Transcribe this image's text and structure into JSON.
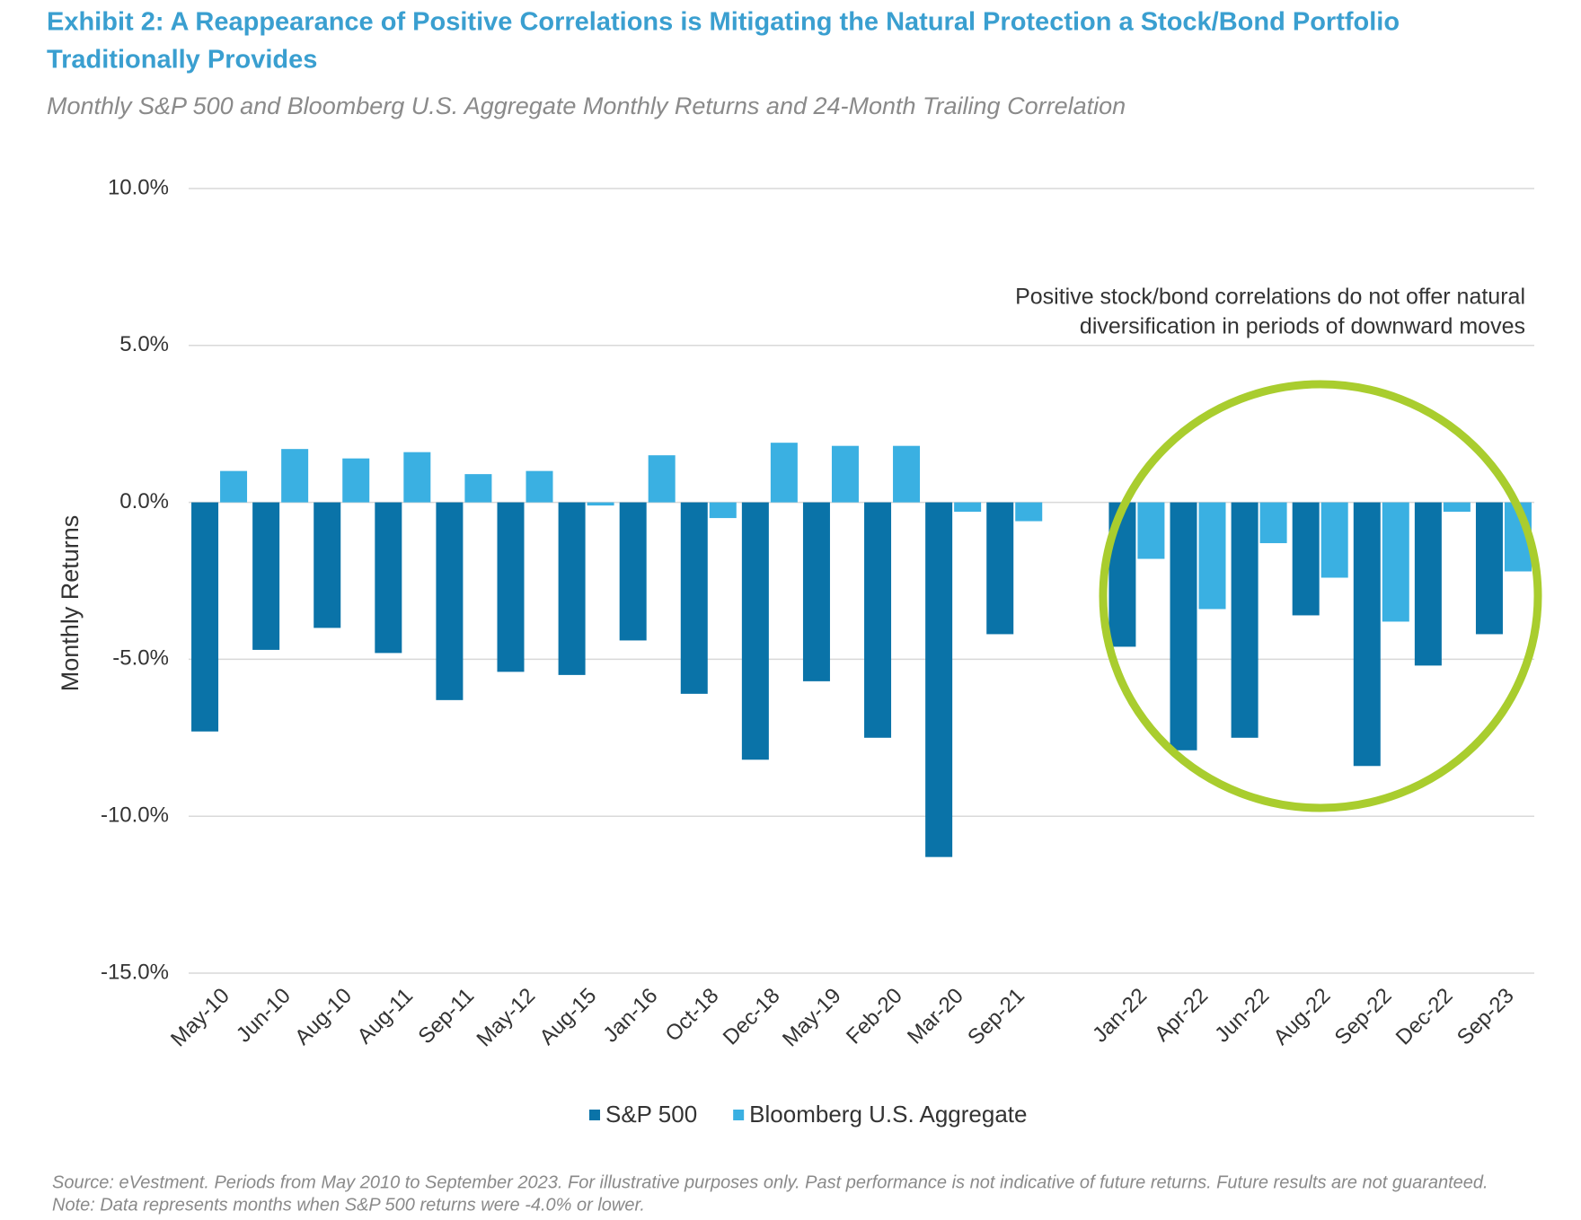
{
  "chart_data": {
    "type": "bar",
    "title": "Exhibit 2: A Reappearance of Positive Correlations is Mitigating the Natural Protection a Stock/Bond Portfolio",
    "title_line2": "Traditionally Provides",
    "subtitle": "Monthly S&P 500 and Bloomberg U.S. Aggregate Monthly Returns and 24-Month Trailing Correlation",
    "y_label": "Monthly Returns",
    "categories": [
      "May-10",
      "Jun-10",
      "Aug-10",
      "Aug-11",
      "Sep-11",
      "May-12",
      "Aug-15",
      "Jan-16",
      "Oct-18",
      "Dec-18",
      "May-19",
      "Feb-20",
      "Mar-20",
      "Sep-21",
      null,
      "Jan-22",
      "Apr-22",
      "Jun-22",
      "Aug-22",
      "Sep-22",
      "Dec-22",
      "Sep-23"
    ],
    "series": [
      {
        "name": "S&P 500",
        "color": "#0a73a8",
        "values": [
          -7.3,
          -4.7,
          -4.0,
          -4.8,
          -6.3,
          -5.4,
          -5.5,
          -4.4,
          -6.1,
          -8.2,
          -5.7,
          -7.5,
          -11.3,
          -4.2,
          null,
          -4.6,
          -7.9,
          -7.5,
          -3.6,
          -8.4,
          -5.2,
          -4.2
        ]
      },
      {
        "name": "Bloomberg U.S. Aggregate",
        "color": "#3ab0e2",
        "values": [
          1.0,
          1.7,
          1.4,
          1.6,
          0.9,
          1.0,
          -0.1,
          1.5,
          -0.5,
          1.9,
          1.8,
          1.8,
          -0.3,
          -0.6,
          null,
          -1.8,
          -3.4,
          -1.3,
          -2.4,
          -3.8,
          -0.3,
          -2.2
        ]
      }
    ],
    "ylim": [
      -15,
      10
    ],
    "yticks": [
      {
        "value": -15,
        "label": "-15.0%"
      },
      {
        "value": -10,
        "label": "-10.0%"
      },
      {
        "value": -5,
        "label": "-5.0%"
      },
      {
        "value": 0,
        "label": "0.0%"
      },
      {
        "value": 5,
        "label": "5.0%"
      },
      {
        "value": 10,
        "label": "10.0%"
      }
    ],
    "grid": true,
    "annotation": [
      "Positive stock/bond correlations do not offer natural",
      "diversification in periods of downward moves"
    ],
    "notes": [
      "Source: eVestment. Periods from May 2010 to September 2023. For illustrative purposes only. Past performance is not indicative of future returns. Future results are not guaranteed.",
      "Note: Data represents months when S&P 500 returns were -4.0% or lower."
    ]
  }
}
